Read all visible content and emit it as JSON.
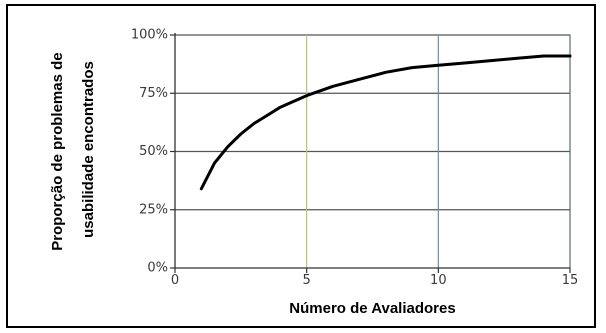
{
  "chart_data": {
    "type": "line",
    "title": "",
    "xlabel": "Número de Avaliadores",
    "ylabel_lines": [
      "Proporção de problemas de",
      "usabilidade encontrados"
    ],
    "xlim": [
      0,
      15
    ],
    "ylim": [
      0,
      100
    ],
    "x_ticks": [
      {
        "value": 0,
        "label": "0"
      },
      {
        "value": 5,
        "label": "5"
      },
      {
        "value": 10,
        "label": "10"
      },
      {
        "value": 15,
        "label": "15"
      }
    ],
    "y_ticks": [
      {
        "value": 0,
        "label": "0%"
      },
      {
        "value": 25,
        "label": "25%"
      },
      {
        "value": 50,
        "label": "50%"
      },
      {
        "value": 75,
        "label": "75%"
      },
      {
        "value": 100,
        "label": "100%"
      }
    ],
    "grid": true,
    "grid_colors": {
      "horizontal": "#555555",
      "vertical": [
        "#c9c070",
        "#6d8fa8",
        "#5a6f6c"
      ]
    },
    "line_color": "#000000",
    "series": [
      {
        "name": "",
        "x": [
          1,
          1.5,
          2,
          2.5,
          3,
          3.5,
          4,
          5,
          6,
          7,
          8,
          9,
          10,
          11,
          12,
          13,
          14,
          15
        ],
        "y": [
          34,
          45,
          52,
          57.5,
          62,
          65.5,
          69,
          74,
          78,
          81,
          84,
          86,
          87,
          88,
          89,
          90,
          91,
          91
        ]
      }
    ]
  }
}
